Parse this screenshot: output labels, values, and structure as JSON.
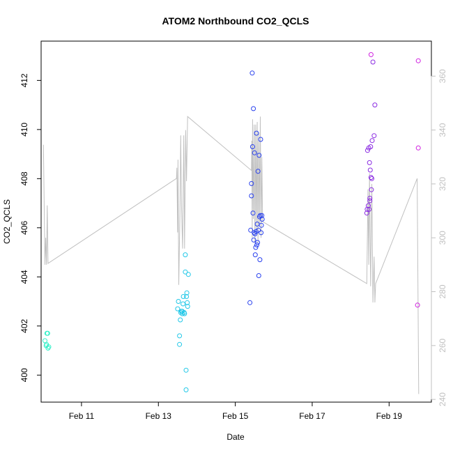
{
  "chart_data": {
    "type": "scatter",
    "title": "ATOM2 Northbound CO2_QCLS",
    "xlabel": "Date",
    "ylabel": "CO2_QCLS",
    "x_unit": "days (Feb, day of month)",
    "xlim": [
      9.95,
      20.1
    ],
    "ylim": [
      398.9,
      413.6
    ],
    "y2lim": [
      239,
      373
    ],
    "x_ticks": [
      {
        "value": 11,
        "label": "Feb 11"
      },
      {
        "value": 13,
        "label": "Feb 13"
      },
      {
        "value": 15,
        "label": "Feb 15"
      },
      {
        "value": 17,
        "label": "Feb 17"
      },
      {
        "value": 19,
        "label": "Feb 19"
      }
    ],
    "y_ticks": [
      400,
      402,
      404,
      406,
      408,
      410,
      412
    ],
    "y2_ticks": [
      240,
      260,
      280,
      300,
      320,
      340,
      360
    ],
    "grid": false,
    "legend": "none",
    "colors": {
      "line": "#c0c0c0",
      "right_axis": "#c0c0c0",
      "flight1": "#33f0c8",
      "flight2": "#22c8e8",
      "flight3": "#2840ee",
      "flight4": "#8a2be2",
      "flight5": "#d020e0"
    },
    "series": [
      {
        "color_key": "flight1",
        "points": [
          [
            10.05,
            401.4
          ],
          [
            10.08,
            401.2
          ],
          [
            10.1,
            401.7
          ],
          [
            10.12,
            401.7
          ],
          [
            10.13,
            401.1
          ],
          [
            10.15,
            401.15
          ],
          [
            10.09,
            401.25
          ]
        ]
      },
      {
        "color_key": "flight2",
        "points": [
          [
            13.5,
            402.7
          ],
          [
            13.52,
            403.0
          ],
          [
            13.55,
            401.6
          ],
          [
            13.55,
            401.25
          ],
          [
            13.57,
            402.25
          ],
          [
            13.58,
            402.55
          ],
          [
            13.6,
            402.6
          ],
          [
            13.62,
            402.5
          ],
          [
            13.64,
            402.9
          ],
          [
            13.65,
            403.2
          ],
          [
            13.67,
            402.55
          ],
          [
            13.68,
            402.5
          ],
          [
            13.7,
            404.2
          ],
          [
            13.7,
            404.9
          ],
          [
            13.72,
            400.2
          ],
          [
            13.72,
            399.4
          ],
          [
            13.73,
            403.2
          ],
          [
            13.74,
            403.35
          ],
          [
            13.75,
            402.95
          ],
          [
            13.76,
            402.8
          ],
          [
            13.78,
            404.1
          ],
          [
            13.62,
            402.6
          ]
        ]
      },
      {
        "color_key": "flight3",
        "points": [
          [
            15.38,
            402.95
          ],
          [
            15.4,
            405.9
          ],
          [
            15.42,
            407.3
          ],
          [
            15.42,
            407.8
          ],
          [
            15.44,
            412.3
          ],
          [
            15.45,
            409.3
          ],
          [
            15.46,
            406.6
          ],
          [
            15.47,
            410.85
          ],
          [
            15.48,
            405.5
          ],
          [
            15.49,
            405.8
          ],
          [
            15.5,
            409.05
          ],
          [
            15.51,
            405.75
          ],
          [
            15.52,
            404.9
          ],
          [
            15.53,
            405.2
          ],
          [
            15.54,
            405.85
          ],
          [
            15.55,
            409.85
          ],
          [
            15.56,
            405.3
          ],
          [
            15.57,
            406.15
          ],
          [
            15.58,
            405.4
          ],
          [
            15.59,
            408.3
          ],
          [
            15.6,
            405.9
          ],
          [
            15.61,
            404.05
          ],
          [
            15.62,
            408.95
          ],
          [
            15.63,
            406.45
          ],
          [
            15.64,
            404.7
          ],
          [
            15.65,
            406.5
          ],
          [
            15.66,
            409.6
          ],
          [
            15.67,
            405.8
          ],
          [
            15.68,
            406.1
          ],
          [
            15.69,
            406.5
          ],
          [
            15.7,
            406.35
          ]
        ]
      },
      {
        "color_key": "flight4",
        "points": [
          [
            18.42,
            406.6
          ],
          [
            18.43,
            406.75
          ],
          [
            18.44,
            409.15
          ],
          [
            18.46,
            406.9
          ],
          [
            18.47,
            409.25
          ],
          [
            18.48,
            406.75
          ],
          [
            18.49,
            408.65
          ],
          [
            18.5,
            407.1
          ],
          [
            18.5,
            407.2
          ],
          [
            18.51,
            408.35
          ],
          [
            18.52,
            409.3
          ],
          [
            18.53,
            408.05
          ],
          [
            18.54,
            407.55
          ],
          [
            18.55,
            408.0
          ],
          [
            18.56,
            409.55
          ],
          [
            18.58,
            412.75
          ],
          [
            18.61,
            409.75
          ],
          [
            18.63,
            411.0
          ]
        ]
      },
      {
        "color_key": "flight5",
        "points": [
          [
            18.53,
            413.05
          ],
          [
            19.74,
            402.85
          ],
          [
            19.76,
            412.8
          ],
          [
            19.76,
            409.25
          ]
        ]
      }
    ],
    "line_series": {
      "axis": "right",
      "color_key": "line",
      "points": [
        [
          10.01,
          334.5
        ],
        [
          10.05,
          290.0
        ],
        [
          10.07,
          300.0
        ],
        [
          10.09,
          290.0
        ],
        [
          10.11,
          312.0
        ],
        [
          10.13,
          290.5
        ],
        [
          13.47,
          322.0
        ],
        [
          13.48,
          326.0
        ],
        [
          13.5,
          302.0
        ],
        [
          13.51,
          329.0
        ],
        [
          13.53,
          282.5
        ],
        [
          13.56,
          309.0
        ],
        [
          13.58,
          338.0
        ],
        [
          13.6,
          312.0
        ],
        [
          13.63,
          296.0
        ],
        [
          13.66,
          338.0
        ],
        [
          13.68,
          296.0
        ],
        [
          13.71,
          340.0
        ],
        [
          13.73,
          321.0
        ],
        [
          13.76,
          345.0
        ],
        [
          15.42,
          325.0
        ],
        [
          15.43,
          336.0
        ],
        [
          15.44,
          300.0
        ],
        [
          15.45,
          344.0
        ],
        [
          15.47,
          307.0
        ],
        [
          15.49,
          342.0
        ],
        [
          15.51,
          298.0
        ],
        [
          15.53,
          342.0
        ],
        [
          15.55,
          302.0
        ],
        [
          15.57,
          343.0
        ],
        [
          15.59,
          298.0
        ],
        [
          15.61,
          339.0
        ],
        [
          15.63,
          305.0
        ],
        [
          15.65,
          345.0
        ],
        [
          15.67,
          300.0
        ],
        [
          15.69,
          330.0
        ],
        [
          15.71,
          306.0
        ],
        [
          18.42,
          283.0
        ],
        [
          18.45,
          318.0
        ],
        [
          18.47,
          290.0
        ],
        [
          18.49,
          324.0
        ],
        [
          18.52,
          282.0
        ],
        [
          18.55,
          320.0
        ],
        [
          18.58,
          276.0
        ],
        [
          18.61,
          293.0
        ],
        [
          18.63,
          276.0
        ],
        [
          18.65,
          283.0
        ],
        [
          19.73,
          322.0
        ],
        [
          19.77,
          242.0
        ]
      ]
    }
  }
}
